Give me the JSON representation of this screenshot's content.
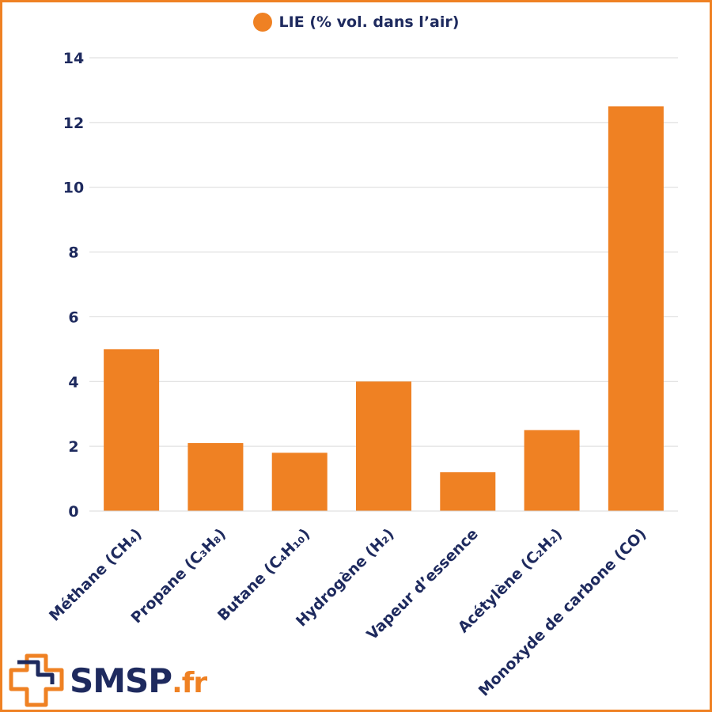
{
  "legend": {
    "label": "LIE (% vol. dans l’air)"
  },
  "brand": {
    "name": "SMSP",
    "tld": ".fr"
  },
  "colors": {
    "bar": "#ef8123",
    "text": "#1e2a5e",
    "grid": "#d9d9d9",
    "frame": "#ef8123"
  },
  "chart_data": {
    "type": "bar",
    "categories": [
      "Méthane (CH₄)",
      "Propane (C₃H₈)",
      "Butane (C₄H₁₀)",
      "Hydrogène (H₂)",
      "Vapeur d’essence",
      "Acétylène (C₂H₂)",
      "Monoxyde de carbone (CO)"
    ],
    "series": [
      {
        "name": "LIE (% vol. dans l’air)",
        "values": [
          5,
          2.1,
          1.8,
          4,
          1.2,
          2.5,
          12.5
        ]
      }
    ],
    "ylim": [
      0,
      14
    ],
    "yticks": [
      "0",
      "2",
      "4",
      "6",
      "8",
      "10",
      "12",
      "14"
    ],
    "grid": true,
    "legend_position": "top-center"
  }
}
